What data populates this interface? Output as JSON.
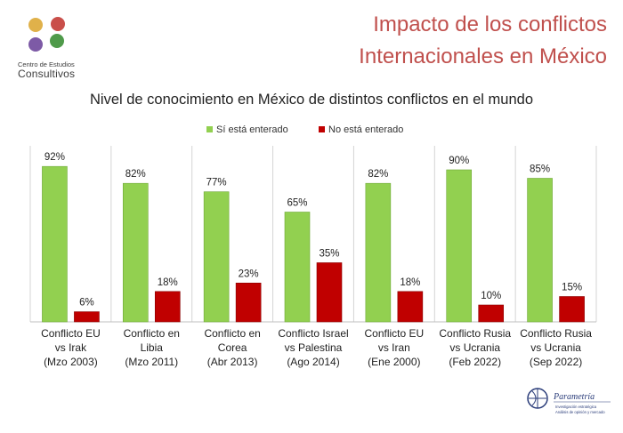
{
  "logo": {
    "line1": "Centro de Estudios",
    "line2": "Consultivos",
    "dot_colors": [
      "#e0b14a",
      "#c94f4a",
      "#7d5aa6",
      "#4f9a4a"
    ]
  },
  "header": {
    "title_line1": "Impacto de los conflictos",
    "title_line2": "Internacionales en México"
  },
  "chart_data": {
    "type": "bar",
    "title": "Nivel de conocimiento en México de distintos conflictos en el mundo",
    "legend_position": "top-center",
    "ylim": [
      0,
      100
    ],
    "value_suffix": "%",
    "categories": [
      [
        "Conflicto EU",
        "vs Irak",
        "(Mzo 2003)"
      ],
      [
        "Conflicto en",
        "Libia",
        "(Mzo 2011)"
      ],
      [
        "Conflicto en",
        "Corea",
        "(Abr 2013)"
      ],
      [
        "Conflicto Israel",
        "vs Palestina",
        "(Ago 2014)"
      ],
      [
        "Conflicto EU",
        "vs Iran",
        "(Ene 2000)"
      ],
      [
        "Conflicto Rusia",
        "vs Ucrania",
        "(Feb 2022)"
      ],
      [
        "Conflicto Rusia",
        "vs Ucrania",
        "(Sep 2022)"
      ]
    ],
    "series": [
      {
        "name": "Sí está enterado",
        "color": "#92d050",
        "values": [
          92,
          82,
          77,
          65,
          82,
          90,
          85
        ]
      },
      {
        "name": "No está enterado",
        "color": "#c00000",
        "values": [
          6,
          18,
          23,
          35,
          18,
          10,
          15
        ]
      }
    ]
  },
  "footer": {
    "brand": "Parametría",
    "tagline1": "Investigación estratégica",
    "tagline2": "Análisis de opinión y mercado"
  }
}
